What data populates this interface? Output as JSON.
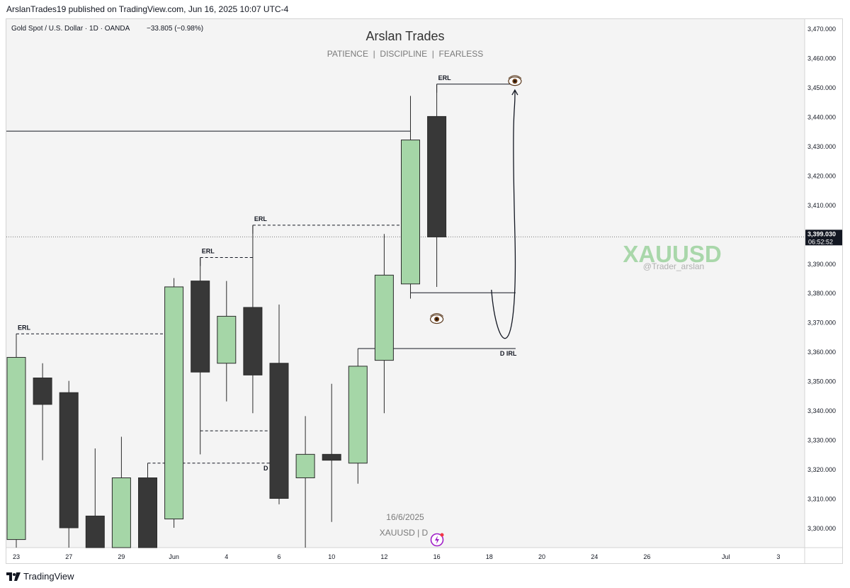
{
  "header": {
    "publish_line": "ArslanTrades19 published on TradingView.com, Jun 16, 2025 10:07 UTC-4"
  },
  "chart_data": {
    "type": "candlestick",
    "symbol_line": "Gold Spot / U.S. Dollar · 1D · OANDA",
    "change_text": "−33.805 (−0.98%)",
    "title": "Arslan Trades",
    "subtitle": "PATIENCE  |  DISCIPLINE  |  FEARLESS",
    "watermark_symbol": "XAUUSD",
    "watermark_handle": "@Trader_arslan",
    "bottom_date": "16/6/2025",
    "bottom_symbol": "XAUUSD | D",
    "ylim": [
      3292,
      3472
    ],
    "y_ticks": [
      3300,
      3310,
      3320,
      3330,
      3340,
      3350,
      3360,
      3370,
      3380,
      3390,
      3400,
      3410,
      3420,
      3430,
      3440,
      3450,
      3460,
      3470
    ],
    "y_tick_labels": [
      "3,300.000",
      "3,310.000",
      "3,320.000",
      "3,330.000",
      "3,340.000",
      "3,350.000",
      "3,360.000",
      "3,370.000",
      "3,380.000",
      "3,390.000",
      "3,400.000",
      "3,410.000",
      "3,420.000",
      "3,430.000",
      "3,440.000",
      "3,450.000",
      "3,460.000",
      "3,470.000"
    ],
    "x_ticks": [
      {
        "label": "23",
        "slot": 0
      },
      {
        "label": "27",
        "slot": 2
      },
      {
        "label": "29",
        "slot": 4
      },
      {
        "label": "Jun",
        "slot": 6
      },
      {
        "label": "4",
        "slot": 8
      },
      {
        "label": "6",
        "slot": 10
      },
      {
        "label": "10",
        "slot": 12
      },
      {
        "label": "12",
        "slot": 14
      },
      {
        "label": "16",
        "slot": 16
      },
      {
        "label": "18",
        "slot": 18
      },
      {
        "label": "20",
        "slot": 20
      },
      {
        "label": "24",
        "slot": 22
      },
      {
        "label": "26",
        "slot": 24
      },
      {
        "label": "Jul",
        "slot": 27
      },
      {
        "label": "3",
        "slot": 29
      }
    ],
    "candles": [
      {
        "date": "2025-05-23",
        "open": 3296,
        "high": 3366,
        "low": 3287,
        "close": 3358
      },
      {
        "date": "2025-05-26",
        "open": 3351,
        "high": 3356,
        "low": 3323,
        "close": 3342
      },
      {
        "date": "2025-05-27",
        "open": 3346,
        "high": 3350,
        "low": 3285,
        "close": 3300
      },
      {
        "date": "2025-05-28",
        "open": 3304,
        "high": 3327,
        "low": 3285,
        "close": 3290
      },
      {
        "date": "2025-05-29",
        "open": 3290,
        "high": 3331,
        "low": 3285,
        "close": 3317
      },
      {
        "date": "2025-05-30",
        "open": 3317,
        "high": 3322,
        "low": 3285,
        "close": 3290
      },
      {
        "date": "2025-06-02",
        "open": 3303,
        "high": 3385,
        "low": 3300,
        "close": 3382
      },
      {
        "date": "2025-06-03",
        "open": 3384,
        "high": 3392,
        "low": 3325,
        "close": 3353
      },
      {
        "date": "2025-06-04",
        "open": 3356,
        "high": 3384,
        "low": 3343,
        "close": 3372
      },
      {
        "date": "2025-06-05",
        "open": 3375,
        "high": 3403,
        "low": 3339,
        "close": 3352
      },
      {
        "date": "2025-06-06",
        "open": 3356,
        "high": 3376,
        "low": 3308,
        "close": 3310
      },
      {
        "date": "2025-06-09",
        "open": 3317,
        "high": 3338,
        "low": 3287,
        "close": 3325
      },
      {
        "date": "2025-06-10",
        "open": 3325,
        "high": 3349,
        "low": 3302,
        "close": 3323
      },
      {
        "date": "2025-06-11",
        "open": 3322,
        "high": 3361,
        "low": 3315,
        "close": 3355
      },
      {
        "date": "2025-06-12",
        "open": 3357,
        "high": 3400,
        "low": 3339,
        "close": 3386
      },
      {
        "date": "2025-06-13",
        "open": 3383,
        "high": 3447,
        "low": 3378,
        "close": 3432
      },
      {
        "date": "2025-06-16",
        "open": 3440,
        "high": 3451,
        "low": 3382,
        "close": 3399
      }
    ],
    "current_price": {
      "value": 3399.03,
      "label": "3,399.030",
      "countdown": "06:52:52"
    },
    "annotations": [
      {
        "type": "solid-line",
        "y": 3435,
        "slot_from": -1,
        "slot_to": 15
      },
      {
        "type": "dashed-line",
        "label": "ERL",
        "y": 3366,
        "slot_from": 0,
        "slot_to": 6
      },
      {
        "type": "dashed-line",
        "label": "ERL",
        "y": 3392,
        "slot_from": 7,
        "slot_to": 9
      },
      {
        "type": "dashed-line",
        "label": "ERL",
        "y": 3403,
        "slot_from": 9,
        "slot_to": 15
      },
      {
        "type": "solid-line",
        "label": "ERL",
        "y": 3451,
        "slot_from": 16,
        "slot_to": 19
      },
      {
        "type": "dashed-line",
        "y": 3333,
        "slot_from": 7,
        "slot_to": 10
      },
      {
        "type": "dashed-line",
        "label": "D IRL",
        "y": 3322,
        "slot_from": 5,
        "slot_to": 10
      },
      {
        "type": "solid-line",
        "label": "D IRL",
        "y": 3361,
        "slot_from": 13,
        "slot_to": 19
      },
      {
        "type": "solid-line",
        "y": 3380,
        "slot_from": 15,
        "slot_to": 19
      }
    ],
    "grid": false,
    "up_color": "#a5d6a7",
    "down_color": "#383838",
    "watermark_color": "#a5d6a7",
    "eye_icon": "eye-emoji"
  },
  "footer": {
    "brand": "TradingView"
  }
}
